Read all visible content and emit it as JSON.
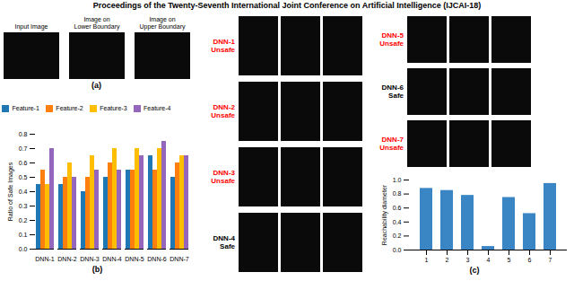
{
  "title": "Proceedings of the Twenty-Seventh International Joint Conference on Artificial Intelligence (IJCAI-18)",
  "annotations": [
    {
      "text": "Input Image",
      "color": "#000000"
    },
    {
      "text": "Image on\nLower Boundary",
      "color": "#000000"
    },
    {
      "text": "Image on\nUpper Boundary",
      "color": "#000000"
    },
    {
      "text": "(a)",
      "color": "#000000"
    },
    {
      "text": "DNN-1\nUnsafe",
      "color": "#ff0000"
    },
    {
      "text": "DNN-2\nUnsafe",
      "color": "#ff0000"
    },
    {
      "text": "DNN-3\nUnsafe",
      "color": "#ff0000"
    },
    {
      "text": "DNN-4\nSafe",
      "color": "#000000"
    },
    {
      "text": "DNN-5\nUnsafe",
      "color": "#ff0000"
    },
    {
      "text": "DNN-6\nSafe",
      "color": "#000000"
    },
    {
      "text": "DNN-7\nUnsafe",
      "color": "#ff0000"
    }
  ],
  "chart_data": [
    {
      "type": "bar",
      "title": "(b)",
      "categories": [
        "DNN-1",
        "DNN-2",
        "DNN-3",
        "DNN-4",
        "DNN-5",
        "DNN-6",
        "DNN-7"
      ],
      "series": [
        {
          "name": "Feature-1",
          "color": "#1f77b4",
          "values": [
            0.45,
            0.45,
            0.4,
            0.5,
            0.55,
            0.65,
            0.5
          ]
        },
        {
          "name": "Feature-2",
          "color": "#ff7f0e",
          "values": [
            0.55,
            0.5,
            0.5,
            0.6,
            0.55,
            0.55,
            0.6
          ]
        },
        {
          "name": "Feature-3",
          "color": "#ffbf00",
          "values": [
            0.45,
            0.6,
            0.65,
            0.7,
            0.7,
            0.7,
            0.65
          ]
        },
        {
          "name": "Feature-4",
          "color": "#9467bd",
          "values": [
            0.7,
            0.5,
            0.55,
            0.55,
            0.65,
            0.75,
            0.65
          ]
        }
      ],
      "ylabel": "Ratio of Safe Images",
      "ylim": [
        0,
        0.8
      ],
      "yticks": [
        {
          "value": 0,
          "label": "0.0"
        },
        0.1,
        0.2,
        0.3,
        0.4,
        0.5,
        0.6,
        0.7,
        0.8
      ],
      "legend": "upper left"
    },
    {
      "type": "bar",
      "title": "(c)",
      "categories": [
        1,
        2,
        3,
        4,
        5,
        6,
        7
      ],
      "values": [
        0.88,
        0.85,
        0.78,
        0.05,
        0.75,
        0.52,
        0.95
      ],
      "color": "#3a85c3",
      "ylabel": "Reachability diameter",
      "ylim": [
        0,
        1
      ],
      "yticks": [
        {
          "value": 0,
          "label": "0.0"
        },
        0.2,
        0.4,
        0.6,
        0.8,
        {
          "value": 1,
          "label": "1.0"
        }
      ]
    }
  ]
}
